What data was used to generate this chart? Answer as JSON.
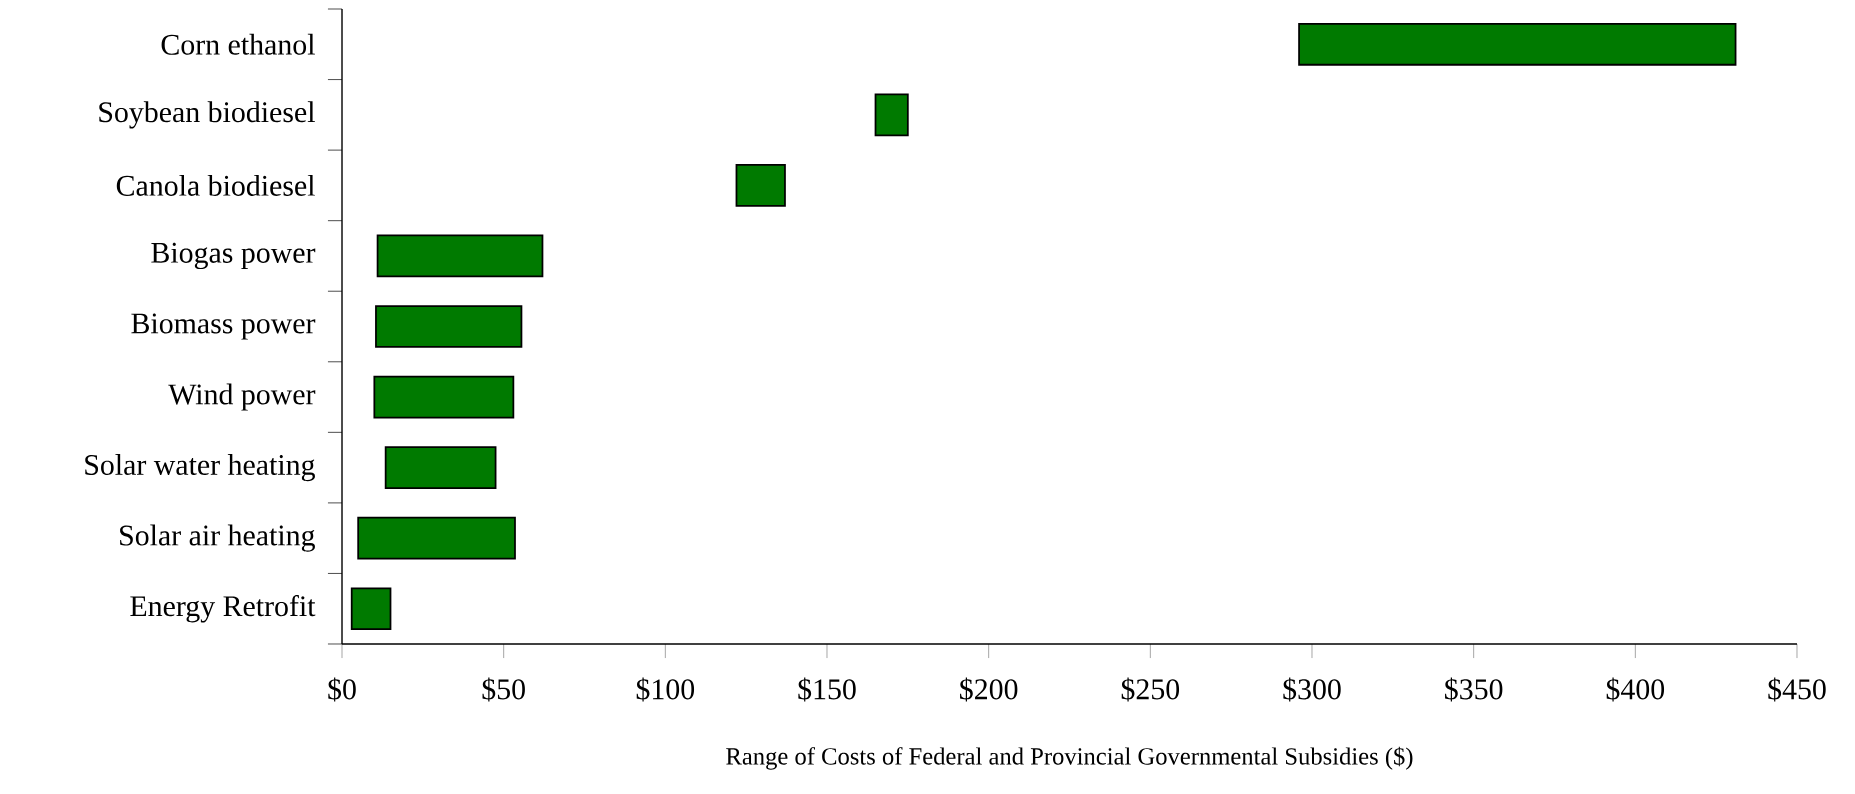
{
  "chart_data": {
    "type": "bar",
    "orientation": "horizontal",
    "xlabel": "Range of Costs of Federal and Provincial Governmental Subsidies ($)",
    "categories": [
      "Corn ethanol",
      "Soybean biodiesel",
      "Canola biodiesel",
      "Biogas power",
      "Biomass power",
      "Wind power",
      "Solar water heating",
      "Solar air heating",
      "Energy Retrofit"
    ],
    "base": [
      296,
      165,
      122,
      11,
      10.5,
      10,
      13.5,
      5,
      3
    ],
    "values": [
      135,
      10,
      15,
      51,
      45,
      43,
      34,
      48.5,
      12
    ],
    "color": "#007a00",
    "xlim": [
      0,
      450
    ],
    "xticks": [
      {
        "value": 0,
        "label": "$0"
      },
      {
        "value": 50,
        "label": "$50"
      },
      {
        "value": 100,
        "label": "$100"
      },
      {
        "value": 150,
        "label": "$150"
      },
      {
        "value": 200,
        "label": "$200"
      },
      {
        "value": 250,
        "label": "$250"
      },
      {
        "value": 300,
        "label": "$300"
      },
      {
        "value": 350,
        "label": "$350"
      },
      {
        "value": 400,
        "label": "$400"
      },
      {
        "value": 450,
        "label": "$450"
      }
    ],
    "grid": false
  }
}
